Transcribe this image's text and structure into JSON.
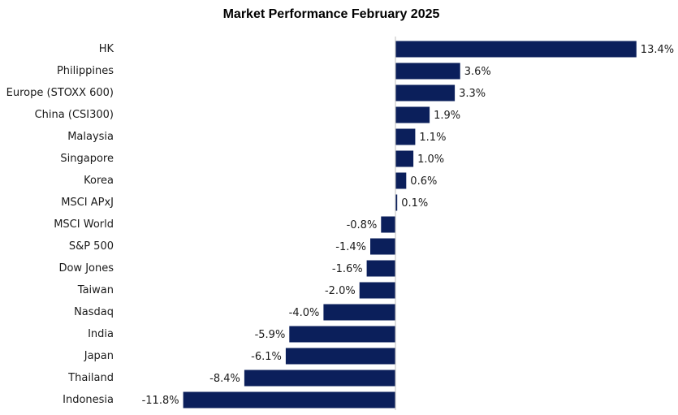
{
  "chart_data": {
    "type": "bar",
    "orientation": "horizontal",
    "title": "Market Performance February 2025",
    "xlabel": "",
    "ylabel": "",
    "grid": false,
    "legend": "none",
    "xlim": [
      -12,
      14
    ],
    "bar_color": "#0b1f5b",
    "axis_color": "#bfbfbf",
    "categories": [
      "HK",
      "Philippines",
      "Europe (STOXX 600)",
      "China (CSI300)",
      "Malaysia",
      "Singapore",
      "Korea",
      "MSCI APxJ",
      "MSCI World",
      "S&P 500",
      "Dow Jones",
      "Taiwan",
      "Nasdaq",
      "India",
      "Japan",
      "Thailand",
      "Indonesia"
    ],
    "values": [
      13.4,
      3.6,
      3.3,
      1.9,
      1.1,
      1.0,
      0.6,
      0.1,
      -0.8,
      -1.4,
      -1.6,
      -2.0,
      -4.0,
      -5.9,
      -6.1,
      -8.4,
      -11.8
    ],
    "value_labels": [
      "13.4%",
      "3.6%",
      "3.3%",
      "1.9%",
      "1.1%",
      "1.0%",
      "0.6%",
      "0.1%",
      "-0.8%",
      "-1.4%",
      "-1.6%",
      "-2.0%",
      "-4.0%",
      "-5.9%",
      "-6.1%",
      "-8.4%",
      "-11.8%"
    ]
  }
}
